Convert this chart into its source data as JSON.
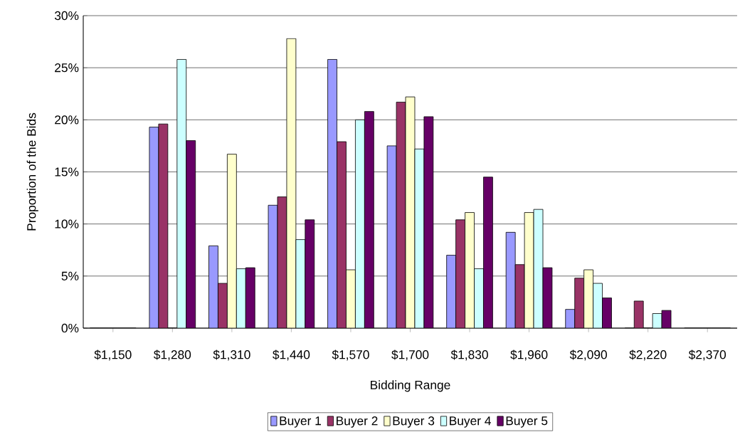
{
  "chart_data": {
    "type": "bar",
    "xlabel": "Bidding Range",
    "ylabel": "Proportion of the Bids",
    "categories": [
      "$1,150",
      "$1,280",
      "$1,310",
      "$1,440",
      "$1,570",
      "$1,700",
      "$1,830",
      "$1,960",
      "$2,090",
      "$2,220",
      "$2,370"
    ],
    "series": [
      {
        "name": "Buyer 1",
        "color": "#9999ff",
        "values": [
          0,
          19.3,
          7.9,
          11.8,
          25.8,
          17.5,
          7.0,
          9.2,
          1.8,
          0,
          0
        ]
      },
      {
        "name": "Buyer 2",
        "color": "#993366",
        "values": [
          0,
          19.6,
          4.3,
          12.6,
          17.9,
          21.7,
          10.4,
          6.1,
          4.8,
          2.6,
          0
        ]
      },
      {
        "name": "Buyer 3",
        "color": "#ffffcc",
        "values": [
          0,
          0,
          16.7,
          27.8,
          5.6,
          22.2,
          11.1,
          11.1,
          5.6,
          0,
          0
        ]
      },
      {
        "name": "Buyer 4",
        "color": "#ccffff",
        "values": [
          0,
          25.8,
          5.7,
          8.5,
          20.0,
          17.2,
          5.7,
          11.4,
          4.3,
          1.4,
          0
        ]
      },
      {
        "name": "Buyer 5",
        "color": "#660066",
        "values": [
          0,
          18.0,
          5.8,
          10.4,
          20.8,
          20.3,
          14.5,
          5.8,
          2.9,
          1.7,
          0
        ]
      }
    ],
    "ylim": [
      0,
      30
    ],
    "yticks": [
      {
        "value": 0,
        "label": "0%"
      },
      {
        "value": 5,
        "label": "5%"
      },
      {
        "value": 10,
        "label": "10%"
      },
      {
        "value": 15,
        "label": "15%"
      },
      {
        "value": 20,
        "label": "20%"
      },
      {
        "value": 25,
        "label": "25%"
      },
      {
        "value": 30,
        "label": "30%"
      }
    ],
    "grid": "y",
    "legend": "bottom"
  }
}
